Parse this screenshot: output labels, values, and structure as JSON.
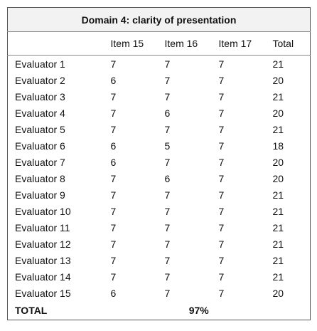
{
  "table": {
    "title": "Domain 4: clarity of presentation",
    "header": [
      "Item 15",
      "Item 16",
      "Item 17",
      "Total"
    ],
    "rows": [
      [
        "Evaluator 1",
        7,
        7,
        7,
        21
      ],
      [
        "Evaluator 2",
        6,
        7,
        7,
        20
      ],
      [
        "Evaluator 3",
        7,
        7,
        7,
        21
      ],
      [
        "Evaluator 4",
        7,
        6,
        7,
        20
      ],
      [
        "Evaluator 5",
        7,
        7,
        7,
        21
      ],
      [
        "Evaluator 6",
        6,
        5,
        7,
        18
      ],
      [
        "Evaluator 7",
        6,
        7,
        7,
        20
      ],
      [
        "Evaluator 8",
        7,
        6,
        7,
        20
      ],
      [
        "Evaluator 9",
        7,
        7,
        7,
        21
      ],
      [
        "Evaluator 10",
        7,
        7,
        7,
        21
      ],
      [
        "Evaluator 11",
        7,
        7,
        7,
        21
      ],
      [
        "Evaluator 12",
        7,
        7,
        7,
        21
      ],
      [
        "Evaluator 13",
        7,
        7,
        7,
        21
      ],
      [
        "Evaluator 14",
        7,
        7,
        7,
        21
      ],
      [
        "Evaluator 15",
        6,
        7,
        7,
        20
      ]
    ],
    "total": {
      "label": "TOTAL",
      "value": "97%"
    }
  }
}
